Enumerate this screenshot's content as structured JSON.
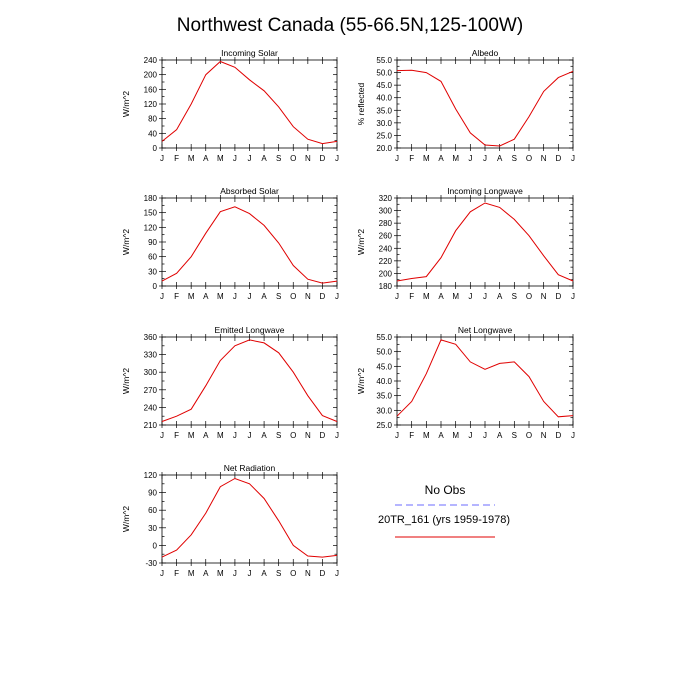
{
  "title": "Northwest Canada (55-66.5N,125-100W)",
  "colors": {
    "model_line": "#e00000",
    "obs_line": "#6b6bff",
    "axis": "#000000"
  },
  "legend": {
    "obs_label": "No Obs",
    "model_label": "20TR_161 (yrs 1959-1978)"
  },
  "chart_data": [
    {
      "type": "line",
      "title": "Incoming Solar",
      "ylabel": "W/m^2",
      "categories": [
        "J",
        "F",
        "M",
        "A",
        "M",
        "J",
        "J",
        "A",
        "S",
        "O",
        "N",
        "D",
        "J"
      ],
      "yticks": [
        0,
        20,
        40,
        60,
        80,
        100,
        120,
        140,
        160,
        180,
        200,
        220,
        240
      ],
      "ytick_labels": [
        "0",
        "40",
        "80",
        "120",
        "160",
        "200",
        "240"
      ],
      "ylim": [
        0,
        240
      ],
      "series": [
        {
          "values": [
            18,
            50,
            120,
            200,
            236,
            220,
            186,
            156,
            112,
            58,
            24,
            12,
            18
          ]
        }
      ]
    },
    {
      "type": "line",
      "title": "Albedo",
      "ylabel": "% reflected",
      "categories": [
        "J",
        "F",
        "M",
        "A",
        "M",
        "J",
        "J",
        "A",
        "S",
        "O",
        "N",
        "D",
        "J"
      ],
      "yticks": [
        20,
        22.5,
        25,
        27.5,
        30,
        32.5,
        35,
        37.5,
        40,
        42.5,
        45,
        47.5,
        50,
        52.5,
        55
      ],
      "ytick_labels": [
        "20.0",
        "25.0",
        "30.0",
        "35.0",
        "40.0",
        "45.0",
        "50.0",
        "55.0"
      ],
      "ylim": [
        20,
        55
      ],
      "series": [
        {
          "values": [
            50.8,
            50.9,
            50.0,
            46.5,
            35.5,
            26.0,
            21.2,
            20.8,
            23.5,
            32.5,
            42.5,
            48.0,
            50.5
          ]
        }
      ]
    },
    {
      "type": "line",
      "title": "Absorbed Solar",
      "ylabel": "W/m^2",
      "categories": [
        "J",
        "F",
        "M",
        "A",
        "M",
        "J",
        "J",
        "A",
        "S",
        "O",
        "N",
        "D",
        "J"
      ],
      "yticks": [
        0,
        15,
        30,
        45,
        60,
        75,
        90,
        105,
        120,
        135,
        150,
        165,
        180
      ],
      "ytick_labels": [
        "0",
        "30",
        "60",
        "90",
        "120",
        "150",
        "180"
      ],
      "ylim": [
        0,
        180
      ],
      "series": [
        {
          "values": [
            10,
            26,
            60,
            108,
            152,
            162,
            148,
            124,
            88,
            42,
            14,
            6,
            10
          ]
        }
      ]
    },
    {
      "type": "line",
      "title": "Incoming Longwave",
      "ylabel": "W/m^2",
      "categories": [
        "J",
        "F",
        "M",
        "A",
        "M",
        "J",
        "J",
        "A",
        "S",
        "O",
        "N",
        "D",
        "J"
      ],
      "yticks": [
        180,
        190,
        200,
        210,
        220,
        230,
        240,
        250,
        260,
        270,
        280,
        290,
        300,
        310,
        320
      ],
      "ytick_labels": [
        "180",
        "200",
        "220",
        "240",
        "260",
        "280",
        "300",
        "320"
      ],
      "ylim": [
        180,
        320
      ],
      "series": [
        {
          "values": [
            188,
            192,
            195,
            225,
            268,
            298,
            312,
            305,
            286,
            260,
            228,
            198,
            188
          ]
        }
      ]
    },
    {
      "type": "line",
      "title": "Emitted Longwave",
      "ylabel": "W/m^2",
      "categories": [
        "J",
        "F",
        "M",
        "A",
        "M",
        "J",
        "J",
        "A",
        "S",
        "O",
        "N",
        "D",
        "J"
      ],
      "yticks": [
        210,
        225,
        240,
        255,
        270,
        285,
        300,
        315,
        330,
        345,
        360
      ],
      "ytick_labels": [
        "210",
        "240",
        "270",
        "300",
        "330",
        "360"
      ],
      "ylim": [
        210,
        360
      ],
      "series": [
        {
          "values": [
            216,
            225,
            237,
            277,
            320,
            345,
            355,
            350,
            333,
            300,
            260,
            226,
            216
          ]
        }
      ]
    },
    {
      "type": "line",
      "title": "Net Longwave",
      "ylabel": "W/m^2",
      "categories": [
        "J",
        "F",
        "M",
        "A",
        "M",
        "J",
        "J",
        "A",
        "S",
        "O",
        "N",
        "D",
        "J"
      ],
      "yticks": [
        25,
        27.5,
        30,
        32.5,
        35,
        37.5,
        40,
        42.5,
        45,
        47.5,
        50,
        52.5,
        55
      ],
      "ytick_labels": [
        "25.0",
        "30.0",
        "35.0",
        "40.0",
        "45.0",
        "50.0",
        "55.0"
      ],
      "ylim": [
        25,
        55
      ],
      "series": [
        {
          "values": [
            28,
            33,
            42.5,
            54,
            52.5,
            46.5,
            44,
            46,
            46.5,
            41.5,
            33,
            27.8,
            28.2
          ]
        }
      ]
    },
    {
      "type": "line",
      "title": "Net Radiation",
      "ylabel": "W/m^2",
      "categories": [
        "J",
        "F",
        "M",
        "A",
        "M",
        "J",
        "J",
        "A",
        "S",
        "O",
        "N",
        "D",
        "J"
      ],
      "yticks": [
        -30,
        -15,
        0,
        15,
        30,
        45,
        60,
        75,
        90,
        105,
        120
      ],
      "ytick_labels": [
        "-30",
        "0",
        "30",
        "60",
        "90",
        "120"
      ],
      "ylim": [
        -30,
        120
      ],
      "series": [
        {
          "values": [
            -20,
            -8,
            18,
            55,
            100,
            114,
            105,
            80,
            42,
            0,
            -18,
            -20,
            -17
          ]
        }
      ]
    }
  ]
}
